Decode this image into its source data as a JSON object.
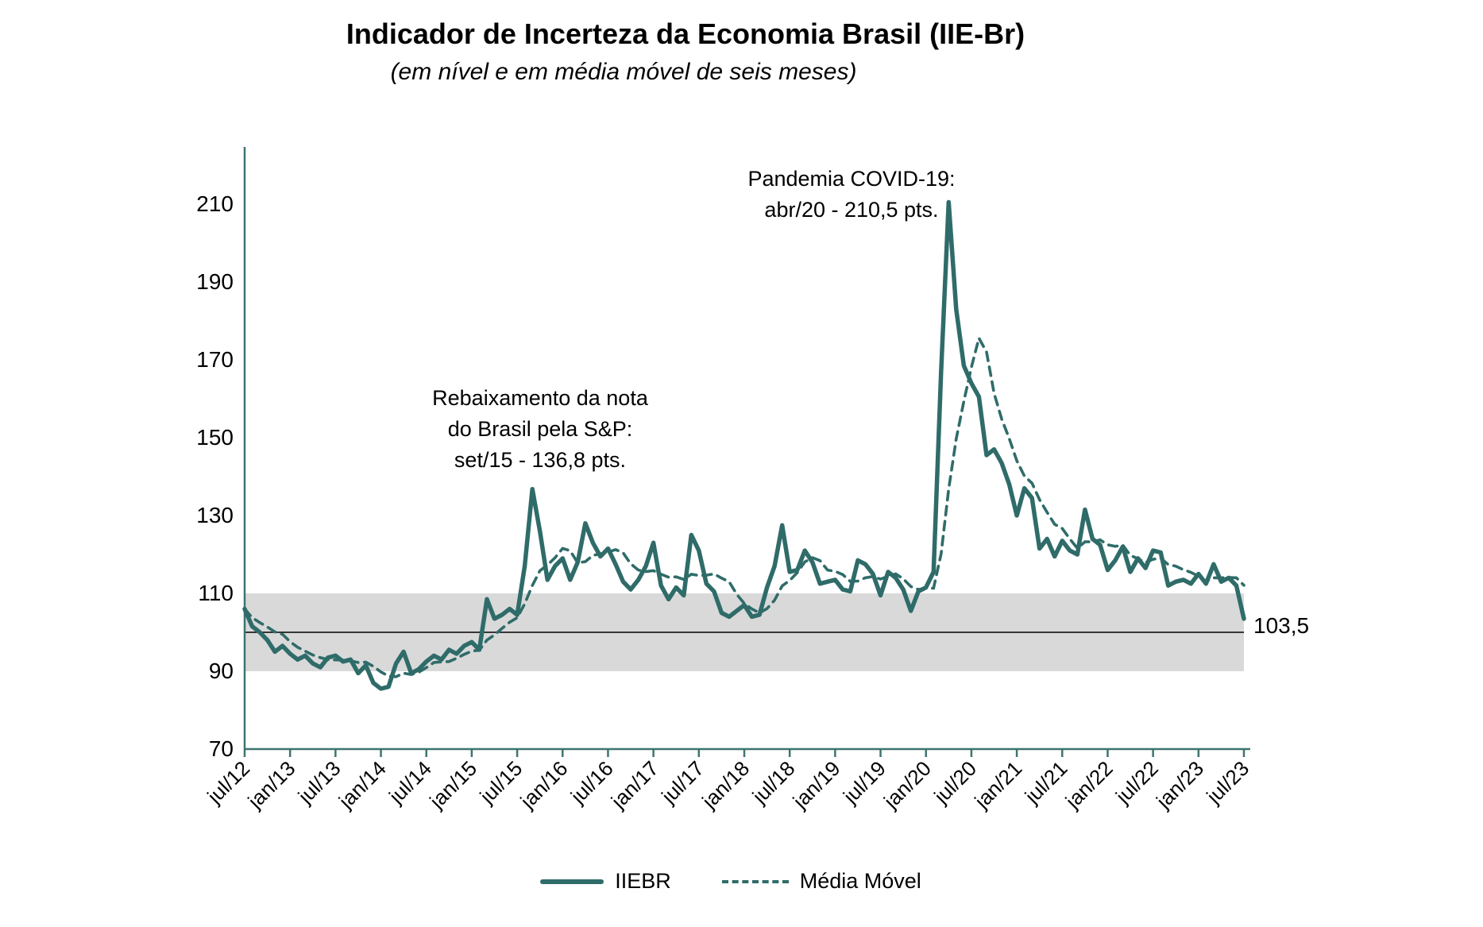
{
  "title": "Indicador de Incerteza da Economia Brasil (IIE-Br)",
  "subtitle": "(em nível e em média móvel de seis meses)",
  "annotations": {
    "covid": {
      "lines": [
        "Pandemia COVID-19:",
        "abr/20 - 210,5 pts."
      ]
    },
    "sp": {
      "lines": [
        "Rebaixamento da nota",
        "do Brasil pela S&P:",
        "set/15 - 136,8 pts."
      ]
    }
  },
  "end_label": "103,5",
  "legend": {
    "items": [
      {
        "label": "IIEBR",
        "style": "solid"
      },
      {
        "label": "Média Móvel",
        "style": "dashed"
      }
    ]
  },
  "colors": {
    "line": "#2F6C69",
    "axis": "#3D7471",
    "band": "#D9D9D9",
    "reference_line": "#000000",
    "text": "#000000"
  },
  "chart_data": {
    "type": "line",
    "title": "Indicador de Incerteza da Economia Brasil (IIE-Br)",
    "subtitle": "(em nível e em média móvel de seis meses)",
    "x_frequency": "monthly",
    "x_start": "jul/12",
    "x_end": "jul/23",
    "x_tick_labels": [
      "jul/12",
      "jan/13",
      "jul/13",
      "jan/14",
      "jul/14",
      "jan/15",
      "jul/15",
      "jan/16",
      "jul/16",
      "jan/17",
      "jul/17",
      "jan/18",
      "jul/18",
      "jan/19",
      "jul/19",
      "jan/20",
      "jul/20",
      "jan/21",
      "jul/21",
      "jan/22",
      "jul/22",
      "jan/23",
      "jul/23"
    ],
    "x_tick_every_n_months": 6,
    "yticks": [
      70,
      90,
      110,
      130,
      150,
      170,
      190,
      210
    ],
    "ylim": [
      70,
      225
    ],
    "grid": false,
    "legend_position": "bottom",
    "shaded_band": {
      "from": 90,
      "to": 110
    },
    "reference_line": 100,
    "annotated_points": [
      {
        "x": "set/15",
        "y": 136.8,
        "label": "Rebaixamento da nota do Brasil pela S&P: set/15 - 136,8 pts."
      },
      {
        "x": "abr/20",
        "y": 210.5,
        "label": "Pandemia COVID-19: abr/20 - 210,5 pts."
      },
      {
        "x": "jul/23",
        "y": 103.5,
        "label": "103,5"
      }
    ],
    "series": [
      {
        "name": "IIEBR",
        "style": "solid",
        "values": [
          106.0,
          101.5,
          100.0,
          98.0,
          95.0,
          96.5,
          94.5,
          93.0,
          94.0,
          92.0,
          91.0,
          93.5,
          94.0,
          92.5,
          93.0,
          89.5,
          91.5,
          87.0,
          85.5,
          86.0,
          92.0,
          95.0,
          89.5,
          90.5,
          92.5,
          94.0,
          93.0,
          95.5,
          94.5,
          96.5,
          97.5,
          95.5,
          108.5,
          103.5,
          104.5,
          106.0,
          104.5,
          117.0,
          136.8,
          126.0,
          113.5,
          117.0,
          119.0,
          113.5,
          118.0,
          128.0,
          123.0,
          119.5,
          121.5,
          117.5,
          113.0,
          111.0,
          113.5,
          117.0,
          123.0,
          112.0,
          108.5,
          111.5,
          109.5,
          125.0,
          121.0,
          112.5,
          110.5,
          105.0,
          104.0,
          105.5,
          107.0,
          104.0,
          104.5,
          111.5,
          117.0,
          127.5,
          115.5,
          116.0,
          121.0,
          118.0,
          112.5,
          113.0,
          113.5,
          111.0,
          110.5,
          118.5,
          117.5,
          115.0,
          109.5,
          115.5,
          114.0,
          111.0,
          105.5,
          110.5,
          111.5,
          115.5,
          167.0,
          210.5,
          183.0,
          168.5,
          164.0,
          160.5,
          145.5,
          147.0,
          143.5,
          138.0,
          130.0,
          137.0,
          134.5,
          121.5,
          124.0,
          119.5,
          123.5,
          121.0,
          120.0,
          131.5,
          124.0,
          122.5,
          116.0,
          118.5,
          122.0,
          115.5,
          119.0,
          116.5,
          121.0,
          120.5,
          112.0,
          113.0,
          113.5,
          112.5,
          115.0,
          112.5,
          117.5,
          113.0,
          114.0,
          112.0,
          103.5
        ]
      },
      {
        "name": "Média Móvel",
        "style": "dashed",
        "derived": "média móvel de seis meses (6-month trailing moving average of IIEBR)"
      }
    ]
  }
}
